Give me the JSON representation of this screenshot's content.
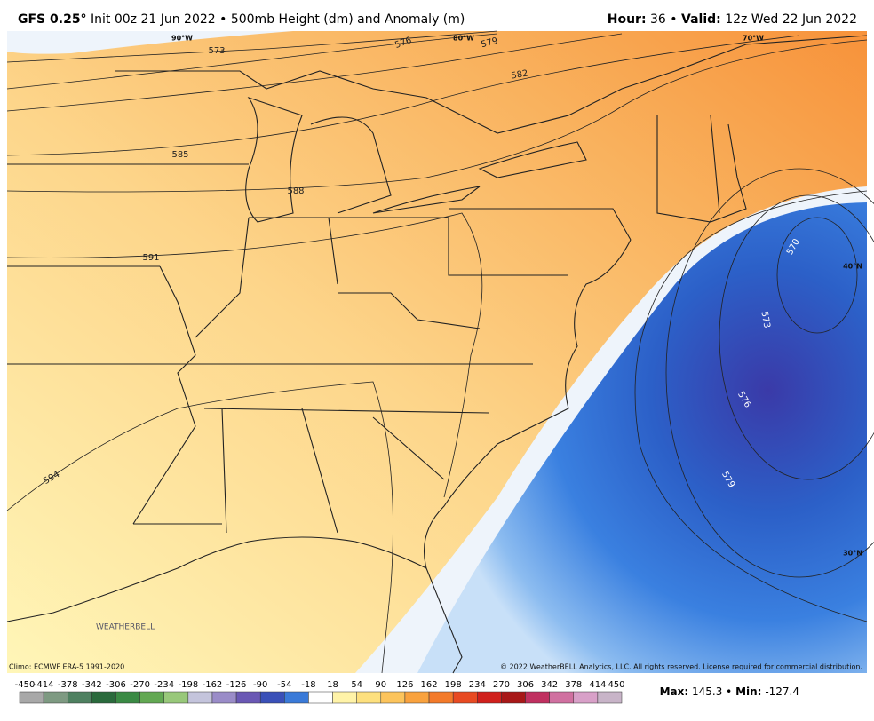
{
  "header": {
    "model": "GFS 0.25°",
    "description": "Init 00z 21 Jun 2022 • 500mb Height (dm) and Anomaly (m)",
    "hour_label": "Hour:",
    "hour": 36,
    "separator": "•",
    "valid_label": "Valid:",
    "valid": "12z Wed 22 Jun 2022"
  },
  "map": {
    "longitude_labels": [
      "90°W",
      "80°W",
      "70°W"
    ],
    "latitude_labels": [
      "40°N",
      "30°N"
    ],
    "contour_labels": [
      573,
      576,
      579,
      582,
      585,
      588,
      591,
      594,
      570,
      573,
      576,
      579
    ],
    "logo": "WEATHERBELL",
    "climo_note": "Climo: ECMWF ERA-5 1991-2020",
    "copyright": "© 2022 WeatherBELL Analytics, LLC. All rights reserved. License required for commercial distribution."
  },
  "colorbar": {
    "ticks": [
      -450,
      -414,
      -378,
      -342,
      -306,
      -270,
      -234,
      -198,
      -162,
      -126,
      -90,
      -54,
      -18,
      18,
      54,
      90,
      126,
      162,
      198,
      234,
      270,
      306,
      342,
      378,
      414,
      450
    ],
    "colors": [
      "#a8a8a8",
      "#7e9a82",
      "#4e8060",
      "#2a6a3c",
      "#3a8a44",
      "#62a852",
      "#98c87a",
      "#c4c4dc",
      "#9a8cc8",
      "#6a58b4",
      "#3a50b8",
      "#3a7ad8",
      "#ffffff",
      "#fff3a8",
      "#fde07e",
      "#fcc45c",
      "#f9a23e",
      "#f37a2a",
      "#e84a22",
      "#d0201c",
      "#a81818",
      "#c03060",
      "#d070a0",
      "#d8a0c8",
      "#c8b4c8"
    ]
  },
  "stats": {
    "max_label": "Max:",
    "max": 145.3,
    "separator": "•",
    "min_label": "Min:",
    "min": -127.4
  }
}
